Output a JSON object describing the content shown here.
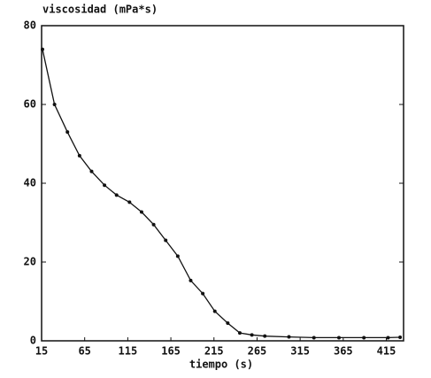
{
  "chart_data": {
    "type": "line",
    "title": "viscosidad (mPa*s)",
    "x_label": "tiempo (s)",
    "x": [
      16,
      30,
      45,
      59,
      73,
      88,
      102,
      117,
      131,
      145,
      159,
      173,
      188,
      202,
      216,
      231,
      245,
      259,
      274,
      302,
      331,
      360,
      389,
      417,
      431
    ],
    "values": [
      74,
      60,
      53,
      47,
      43,
      39.5,
      37,
      35.2,
      32.7,
      29.5,
      25.5,
      21.5,
      15.3,
      12,
      7.5,
      4.5,
      2,
      1.5,
      1.2,
      1,
      0.8,
      0.8,
      0.8,
      0.8,
      0.9
    ],
    "color": "#111111",
    "xlim": [
      15,
      435
    ],
    "xticks": [
      15,
      65,
      115,
      165,
      215,
      265,
      315,
      365,
      415
    ],
    "ylim": [
      0,
      80
    ],
    "yticks": [
      0,
      20,
      40,
      60,
      80
    ]
  }
}
